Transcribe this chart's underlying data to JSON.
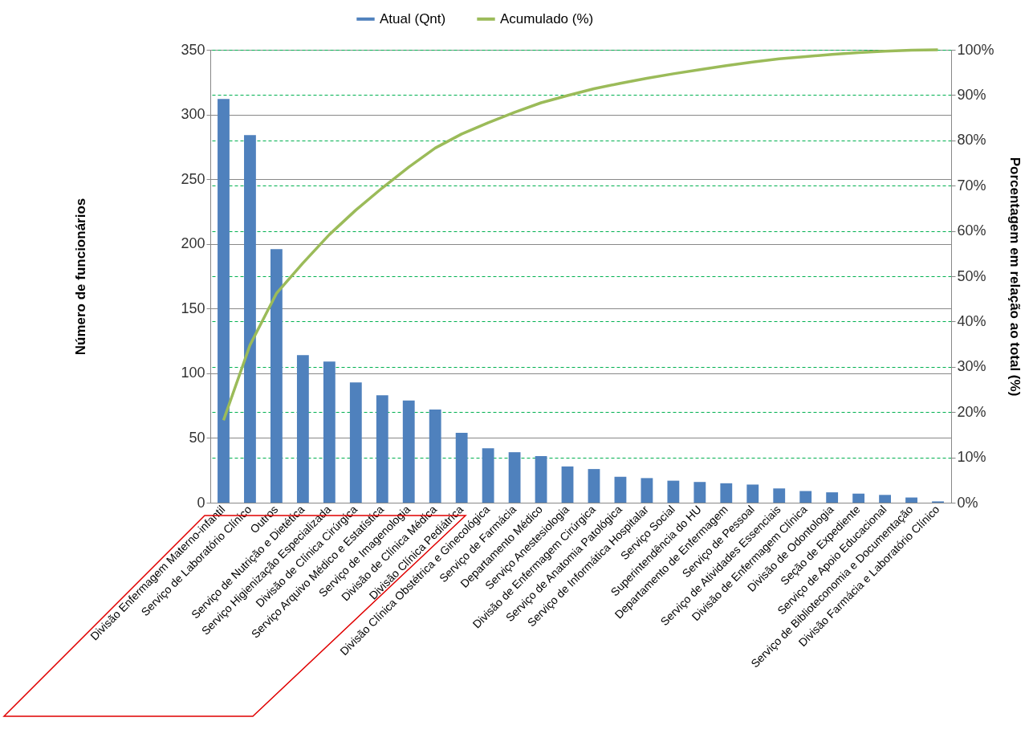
{
  "chart_data": {
    "type": "bar",
    "categories": [
      "Divisão Enfermagem Materno-infantil",
      "Serviço de Laboratório Clínico",
      "Outros",
      "Serviço de Nutrição e Dietética",
      "Serviço Higienização Especializada",
      "Divisão de Clínica Cirúrgica",
      "Serviço Arquivo Médico e Estatística",
      "Serviço de Imagenologia",
      "Divisão de Clínica Médica",
      "Divisão Clínica Pediátrica",
      "Divisão Clínica Obstétrica e Ginecológica",
      "Serviço de Farmácia",
      "Departamento Médico",
      "Serviço Anestesiologia",
      "Divisão de Enfermagem Cirúrgica",
      "Serviço de Anatomia Patológica",
      "Serviço de Informática Hospitalar",
      "Serviço Social",
      "Superintendência do HU",
      "Departamento de Enfermagem",
      "Serviço de Pessoal",
      "Serviço de Atividades Essenciais",
      "Divisão de Enfermagem Clínica",
      "Divisão de Odontologia",
      "Seção de Expediente",
      "Serviço de Apoio Educacional",
      "Serviço de Biblioteconomia e Documentação",
      "Divisão Farmácia e Laboratório Clínico"
    ],
    "series": [
      {
        "name": "Atual (Qnt)",
        "color": "#4f81bd",
        "values": [
          312,
          284,
          196,
          114,
          109,
          93,
          83,
          79,
          72,
          54,
          42,
          39,
          36,
          28,
          26,
          20,
          19,
          17,
          16,
          15,
          14,
          11,
          9,
          8,
          7,
          6,
          4,
          1
        ]
      },
      {
        "name": "Acumulado (%)",
        "type": "line",
        "axis": "y2",
        "color": "#9bbb59",
        "values": [
          18.2,
          34.8,
          46.2,
          52.9,
          59.2,
          64.6,
          69.5,
          74.1,
          78.3,
          81.4,
          83.9,
          86.2,
          88.3,
          89.9,
          91.4,
          92.6,
          93.7,
          94.7,
          95.6,
          96.5,
          97.3,
          98.0,
          98.5,
          99.0,
          99.4,
          99.7,
          99.9,
          100
        ]
      }
    ],
    "ylabel": "Número de funcionários",
    "y2label": "Porcentagem em relação ao total (%)",
    "ylim": [
      0,
      350
    ],
    "yticks": [
      0,
      50,
      100,
      150,
      200,
      250,
      300,
      350
    ],
    "y2lim": [
      0,
      100
    ],
    "y2ticks": [
      {
        "value": 0,
        "label": "0%"
      },
      {
        "value": 10,
        "label": "10%"
      },
      {
        "value": 20,
        "label": "20%"
      },
      {
        "value": 30,
        "label": "30%"
      },
      {
        "value": 40,
        "label": "40%"
      },
      {
        "value": 50,
        "label": "50%"
      },
      {
        "value": 60,
        "label": "60%"
      },
      {
        "value": 70,
        "label": "70%"
      },
      {
        "value": 80,
        "label": "80%"
      },
      {
        "value": 90,
        "label": "90%"
      },
      {
        "value": 100,
        "label": "100%"
      }
    ],
    "grid": true,
    "legend": "top",
    "line_style": "solid"
  }
}
